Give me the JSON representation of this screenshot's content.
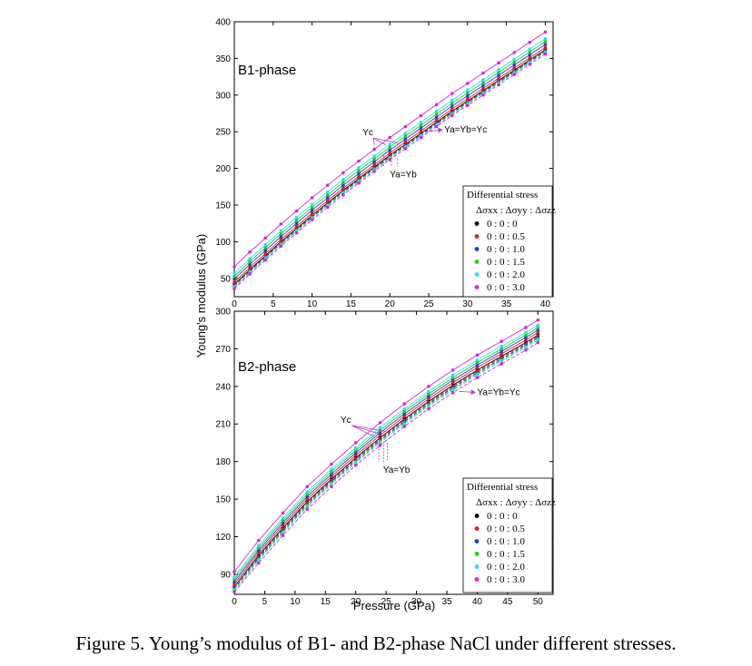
{
  "caption": "Figure 5. Young’s modulus of B1- and B2-phase NaCl under different stresses.",
  "shared": {
    "ylabel": "Young's modulus (GPa)",
    "xlabel": "Pressure (GPa)"
  },
  "legend": {
    "title": "Differential stress",
    "header": "Δσxx : Δσyy : Δσzz",
    "entries": [
      {
        "label": "0  :  0  :  0",
        "color": "#000000"
      },
      {
        "label": "0  :  0  :  0.5",
        "color": "#e41a1c"
      },
      {
        "label": "0  :  0  :  1.0",
        "color": "#1f3fd8"
      },
      {
        "label": "0  :  0  :  1.5",
        "color": "#22cc22"
      },
      {
        "label": "0  :  0  :  2.0",
        "color": "#33ddee"
      },
      {
        "label": "0  :  0  :  3.0",
        "color": "#dd22dd"
      }
    ]
  },
  "chart_data": [
    {
      "type": "scatter",
      "panel_label": "B1-phase",
      "xlim": [
        0,
        41
      ],
      "ylim": [
        25,
        400
      ],
      "xticks": [
        0,
        5,
        10,
        15,
        20,
        25,
        30,
        35,
        40
      ],
      "yticks": [
        50,
        100,
        150,
        200,
        250,
        300,
        350,
        400
      ],
      "x": [
        0,
        2,
        4,
        6,
        8,
        10,
        12,
        14,
        16,
        18,
        20,
        22,
        24,
        26,
        28,
        30,
        32,
        34,
        36,
        38,
        40
      ],
      "annotations": [
        {
          "text": "Yc",
          "at": [
            16.5,
            245
          ],
          "points_to": [
            [
              18,
              232
            ],
            [
              19.5,
              232
            ],
            [
              21,
              235
            ]
          ]
        },
        {
          "text": "Ya=Yb=Yc",
          "at": [
            27,
            249
          ],
          "points_to": [
            [
              24.5,
              250
            ]
          ]
        },
        {
          "text": "Ya=Yb",
          "at": [
            20,
            188
          ],
          "points_to": [
            [
              19.2,
              218
            ],
            [
              20.2,
              215
            ],
            [
              21,
              213
            ]
          ]
        }
      ],
      "series": [
        {
          "legend": "0 : 0 : 0",
          "Ya=Yb": [
            42,
            62,
            81,
            100,
            118,
            136,
            153,
            170,
            186,
            202,
            218,
            233,
            248,
            263,
            278,
            292,
            306,
            320,
            334,
            348,
            362
          ],
          "Yc": [
            42,
            62,
            81,
            100,
            118,
            136,
            153,
            170,
            186,
            202,
            218,
            233,
            248,
            263,
            278,
            292,
            306,
            320,
            334,
            348,
            362
          ]
        },
        {
          "legend": "0 : 0 : 0.5",
          "Ya=Yb": [
            41,
            61,
            80,
            99,
            117,
            135,
            152,
            169,
            185,
            201,
            217,
            232,
            247,
            262,
            277,
            291,
            305,
            319,
            333,
            347,
            361
          ],
          "Yc": [
            45,
            65,
            84,
            103,
            121,
            139,
            156,
            173,
            189,
            205,
            221,
            236,
            251,
            266,
            281,
            295,
            309,
            323,
            337,
            351,
            365
          ]
        },
        {
          "legend": "0 : 0 : 1.0",
          "Ya=Yb": [
            40,
            60,
            79,
            98,
            116,
            134,
            151,
            168,
            184,
            200,
            216,
            231,
            246,
            261,
            276,
            290,
            304,
            318,
            332,
            346,
            360
          ],
          "Yc": [
            49,
            69,
            88,
            107,
            125,
            143,
            160,
            177,
            193,
            209,
            225,
            240,
            255,
            270,
            285,
            299,
            313,
            327,
            341,
            355,
            369
          ]
        },
        {
          "legend": "0 : 0 : 1.5",
          "Ya=Yb": [
            39,
            59,
            78,
            97,
            115,
            133,
            150,
            167,
            183,
            199,
            215,
            230,
            245,
            260,
            275,
            289,
            303,
            317,
            331,
            345,
            359
          ],
          "Yc": [
            53,
            73,
            92,
            111,
            129,
            147,
            164,
            181,
            197,
            213,
            229,
            244,
            259,
            274,
            289,
            303,
            317,
            331,
            345,
            359,
            373
          ]
        },
        {
          "legend": "0 : 0 : 2.0",
          "Ya=Yb": [
            38,
            58,
            77,
            96,
            114,
            132,
            149,
            166,
            182,
            198,
            214,
            229,
            244,
            259,
            274,
            288,
            302,
            316,
            330,
            344,
            358
          ],
          "Yc": [
            57,
            77,
            96,
            115,
            133,
            151,
            168,
            185,
            201,
            217,
            233,
            248,
            263,
            278,
            293,
            307,
            321,
            335,
            349,
            363,
            377
          ]
        },
        {
          "legend": "0 : 0 : 3.0",
          "Ya=Yb": [
            36,
            56,
            75,
            94,
            112,
            130,
            147,
            164,
            180,
            196,
            212,
            227,
            242,
            257,
            272,
            286,
            300,
            314,
            328,
            342,
            356
          ],
          "Yc": [
            66,
            86,
            105,
            124,
            142,
            160,
            177,
            194,
            210,
            226,
            242,
            257,
            272,
            287,
            302,
            316,
            330,
            344,
            358,
            372,
            386
          ]
        }
      ]
    },
    {
      "type": "scatter",
      "panel_label": "B2-phase",
      "xlim": [
        0,
        52.5
      ],
      "ylim": [
        74,
        300
      ],
      "xticks": [
        0,
        5,
        10,
        15,
        20,
        25,
        30,
        35,
        40,
        45,
        50
      ],
      "yticks": [
        90,
        120,
        150,
        180,
        210,
        240,
        270,
        300
      ],
      "x": [
        0,
        4,
        8,
        12,
        16,
        20,
        24,
        28,
        32,
        36,
        40,
        44,
        48,
        50
      ],
      "annotations": [
        {
          "text": "Yc",
          "at": [
            17.5,
            211
          ],
          "points_to": [
            [
              23,
              200
            ],
            [
              24,
              202
            ],
            [
              25,
              204
            ]
          ]
        },
        {
          "text": "Ya=Yb=Yc",
          "at": [
            40,
            233
          ],
          "points_to": [
            [
              37,
              236
            ]
          ]
        },
        {
          "text": "Ya=Yb",
          "at": [
            24.5,
            171
          ],
          "points_to": [
            [
              23.8,
              198
            ],
            [
              24.6,
              196
            ],
            [
              25.2,
              195
            ]
          ]
        }
      ],
      "series": [
        {
          "legend": "0 : 0 : 0",
          "Ya=Yb": [
            80,
            105,
            127,
            148,
            166,
            183,
            199,
            214,
            228,
            241,
            253,
            264,
            275,
            281
          ],
          "Yc": [
            80,
            105,
            127,
            148,
            166,
            183,
            199,
            214,
            228,
            241,
            253,
            264,
            275,
            281
          ]
        },
        {
          "legend": "0 : 0 : 0.5",
          "Ya=Yb": [
            80,
            104,
            126,
            147,
            165,
            182,
            198,
            213,
            227,
            240,
            252,
            263,
            274,
            280
          ],
          "Yc": [
            82,
            107,
            129,
            150,
            168,
            185,
            201,
            216,
            230,
            243,
            255,
            266,
            277,
            283
          ]
        },
        {
          "legend": "0 : 0 : 1.0",
          "Ya=Yb": [
            79,
            103,
            125,
            146,
            164,
            181,
            197,
            212,
            226,
            239,
            251,
            262,
            273,
            279
          ],
          "Yc": [
            84,
            109,
            131,
            152,
            170,
            187,
            203,
            218,
            232,
            245,
            257,
            268,
            279,
            285
          ]
        },
        {
          "legend": "0 : 0 : 1.5",
          "Ya=Yb": [
            78,
            102,
            124,
            145,
            163,
            180,
            196,
            211,
            225,
            238,
            250,
            261,
            272,
            278
          ],
          "Yc": [
            86,
            111,
            133,
            154,
            172,
            189,
            205,
            220,
            234,
            247,
            259,
            270,
            281,
            287
          ]
        },
        {
          "legend": "0 : 0 : 2.0",
          "Ya=Yb": [
            77,
            101,
            123,
            144,
            162,
            179,
            195,
            210,
            224,
            237,
            249,
            260,
            271,
            277
          ],
          "Yc": [
            88,
            113,
            135,
            156,
            174,
            191,
            207,
            222,
            236,
            249,
            261,
            272,
            283,
            289
          ]
        },
        {
          "legend": "0 : 0 : 3.0",
          "Ya=Yb": [
            76,
            99,
            121,
            142,
            160,
            177,
            193,
            208,
            222,
            235,
            247,
            258,
            269,
            275
          ],
          "Yc": [
            92,
            117,
            139,
            160,
            178,
            195,
            211,
            226,
            240,
            253,
            265,
            276,
            287,
            293
          ]
        }
      ]
    }
  ]
}
